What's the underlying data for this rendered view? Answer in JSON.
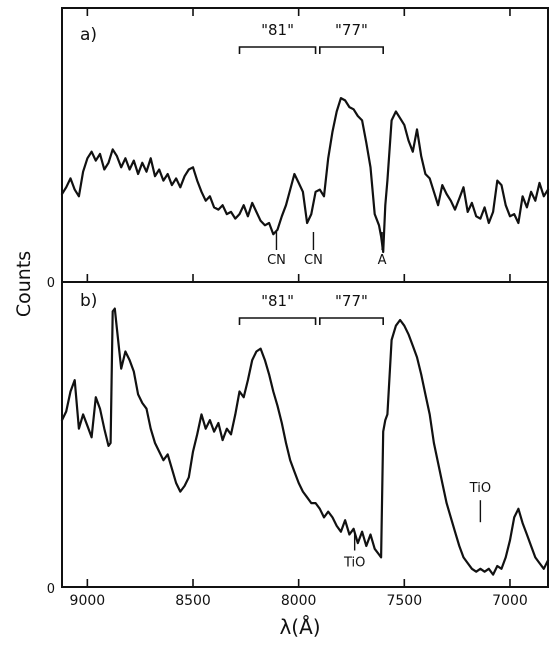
{
  "chart_data": [
    {
      "type": "line",
      "panel_label": "a)",
      "xlim": [
        9120,
        6820
      ],
      "ylim": [
        0,
        1
      ],
      "x_ticks": [
        9000,
        8500,
        8000,
        7500,
        7000
      ],
      "y_zero_label": "0",
      "x_inverted": true,
      "grid": false,
      "series": [
        {
          "x": [
            9120,
            9100,
            9080,
            9060,
            9040,
            9020,
            9000,
            8980,
            8960,
            8940,
            8920,
            8900,
            8880,
            8860,
            8840,
            8820,
            8800,
            8780,
            8760,
            8740,
            8720,
            8700,
            8680,
            8660,
            8640,
            8620,
            8600,
            8580,
            8560,
            8540,
            8520,
            8500,
            8480,
            8460,
            8440,
            8420,
            8400,
            8380,
            8360,
            8340,
            8320,
            8300,
            8280,
            8260,
            8240,
            8220,
            8200,
            8180,
            8160,
            8140,
            8120,
            8100,
            8080,
            8060,
            8040,
            8020,
            8000,
            7980,
            7960,
            7940,
            7920,
            7900,
            7880,
            7860,
            7840,
            7820,
            7800,
            7780,
            7760,
            7740,
            7720,
            7700,
            7680,
            7660,
            7640,
            7620,
            7610,
            7600,
            7590,
            7580,
            7560,
            7540,
            7520,
            7500,
            7480,
            7460,
            7440,
            7420,
            7400,
            7380,
            7360,
            7340,
            7320,
            7300,
            7280,
            7260,
            7240,
            7220,
            7200,
            7180,
            7160,
            7140,
            7120,
            7100,
            7080,
            7060,
            7040,
            7020,
            7000,
            6980,
            6960,
            6940,
            6920,
            6900,
            6880,
            6860,
            6840,
            6820
          ],
          "y": [
            0.39,
            0.42,
            0.46,
            0.41,
            0.38,
            0.49,
            0.55,
            0.58,
            0.54,
            0.57,
            0.5,
            0.53,
            0.59,
            0.56,
            0.51,
            0.55,
            0.5,
            0.54,
            0.48,
            0.53,
            0.49,
            0.55,
            0.47,
            0.5,
            0.45,
            0.48,
            0.43,
            0.46,
            0.42,
            0.47,
            0.5,
            0.51,
            0.45,
            0.4,
            0.36,
            0.38,
            0.33,
            0.32,
            0.34,
            0.3,
            0.31,
            0.28,
            0.3,
            0.34,
            0.29,
            0.35,
            0.31,
            0.27,
            0.25,
            0.26,
            0.21,
            0.23,
            0.29,
            0.34,
            0.41,
            0.48,
            0.44,
            0.4,
            0.26,
            0.3,
            0.4,
            0.41,
            0.38,
            0.55,
            0.67,
            0.76,
            0.82,
            0.81,
            0.78,
            0.77,
            0.74,
            0.72,
            0.62,
            0.51,
            0.3,
            0.25,
            0.2,
            0.13,
            0.34,
            0.45,
            0.72,
            0.76,
            0.73,
            0.7,
            0.63,
            0.58,
            0.68,
            0.56,
            0.48,
            0.46,
            0.4,
            0.34,
            0.43,
            0.39,
            0.36,
            0.32,
            0.37,
            0.42,
            0.31,
            0.35,
            0.29,
            0.28,
            0.33,
            0.26,
            0.31,
            0.45,
            0.43,
            0.34,
            0.29,
            0.3,
            0.26,
            0.38,
            0.33,
            0.4,
            0.36,
            0.44,
            0.38,
            0.41
          ]
        }
      ],
      "bands": [
        {
          "label": "\"81\"",
          "from": 8280,
          "to": 7920
        },
        {
          "label": "\"77\"",
          "from": 7900,
          "to": 7600
        }
      ],
      "annotations": [
        {
          "label": "CN",
          "x": 8105
        },
        {
          "label": "CN",
          "x": 7930
        },
        {
          "label": "A",
          "x": 7605
        }
      ]
    },
    {
      "type": "line",
      "panel_label": "b)",
      "xlim": [
        9120,
        6820
      ],
      "ylim": [
        0,
        1
      ],
      "x_ticks": [
        9000,
        8500,
        8000,
        7500,
        7000
      ],
      "x_tick_labels": [
        "9000",
        "8500",
        "8000",
        "7500",
        "7000"
      ],
      "y_zero_label": "0",
      "ylabel": "Counts",
      "xlabel": "λ(Å)",
      "x_inverted": true,
      "grid": false,
      "series": [
        {
          "x": [
            9120,
            9100,
            9080,
            9060,
            9040,
            9020,
            9000,
            8980,
            8960,
            8940,
            8920,
            8900,
            8890,
            8880,
            8870,
            8860,
            8840,
            8820,
            8800,
            8780,
            8760,
            8740,
            8720,
            8700,
            8680,
            8660,
            8640,
            8620,
            8600,
            8580,
            8560,
            8540,
            8520,
            8500,
            8480,
            8460,
            8440,
            8420,
            8400,
            8380,
            8360,
            8340,
            8320,
            8300,
            8280,
            8260,
            8240,
            8220,
            8200,
            8180,
            8160,
            8140,
            8120,
            8100,
            8080,
            8060,
            8040,
            8020,
            8000,
            7980,
            7960,
            7940,
            7920,
            7900,
            7880,
            7860,
            7840,
            7820,
            7800,
            7780,
            7760,
            7740,
            7720,
            7700,
            7680,
            7660,
            7640,
            7620,
            7610,
            7600,
            7590,
            7580,
            7560,
            7540,
            7520,
            7500,
            7480,
            7460,
            7440,
            7420,
            7400,
            7380,
            7360,
            7340,
            7320,
            7300,
            7280,
            7260,
            7240,
            7220,
            7200,
            7180,
            7160,
            7140,
            7120,
            7100,
            7080,
            7060,
            7040,
            7020,
            7000,
            6980,
            6960,
            6940,
            6920,
            6900,
            6880,
            6860,
            6840,
            6820
          ],
          "y": [
            0.58,
            0.61,
            0.68,
            0.72,
            0.55,
            0.6,
            0.56,
            0.52,
            0.66,
            0.62,
            0.55,
            0.49,
            0.5,
            0.96,
            0.97,
            0.9,
            0.76,
            0.82,
            0.79,
            0.75,
            0.67,
            0.64,
            0.62,
            0.55,
            0.5,
            0.47,
            0.44,
            0.46,
            0.41,
            0.36,
            0.33,
            0.35,
            0.38,
            0.47,
            0.53,
            0.6,
            0.55,
            0.58,
            0.54,
            0.57,
            0.51,
            0.55,
            0.53,
            0.6,
            0.68,
            0.66,
            0.72,
            0.79,
            0.82,
            0.83,
            0.79,
            0.74,
            0.68,
            0.63,
            0.57,
            0.5,
            0.44,
            0.4,
            0.36,
            0.33,
            0.31,
            0.29,
            0.29,
            0.27,
            0.24,
            0.26,
            0.24,
            0.21,
            0.19,
            0.23,
            0.18,
            0.2,
            0.15,
            0.19,
            0.14,
            0.18,
            0.13,
            0.11,
            0.1,
            0.54,
            0.58,
            0.6,
            0.86,
            0.91,
            0.93,
            0.91,
            0.88,
            0.84,
            0.8,
            0.74,
            0.67,
            0.6,
            0.5,
            0.43,
            0.36,
            0.29,
            0.24,
            0.19,
            0.14,
            0.1,
            0.08,
            0.06,
            0.05,
            0.06,
            0.05,
            0.06,
            0.04,
            0.07,
            0.06,
            0.1,
            0.16,
            0.24,
            0.27,
            0.22,
            0.18,
            0.14,
            0.1,
            0.08,
            0.06,
            0.09
          ]
        }
      ],
      "bands": [
        {
          "label": "\"81\"",
          "from": 8280,
          "to": 7920
        },
        {
          "label": "\"77\"",
          "from": 7900,
          "to": 7600
        }
      ],
      "annotations": [
        {
          "label": "TiO",
          "x": 7735
        },
        {
          "label": "TiO",
          "x": 7140
        }
      ]
    }
  ]
}
